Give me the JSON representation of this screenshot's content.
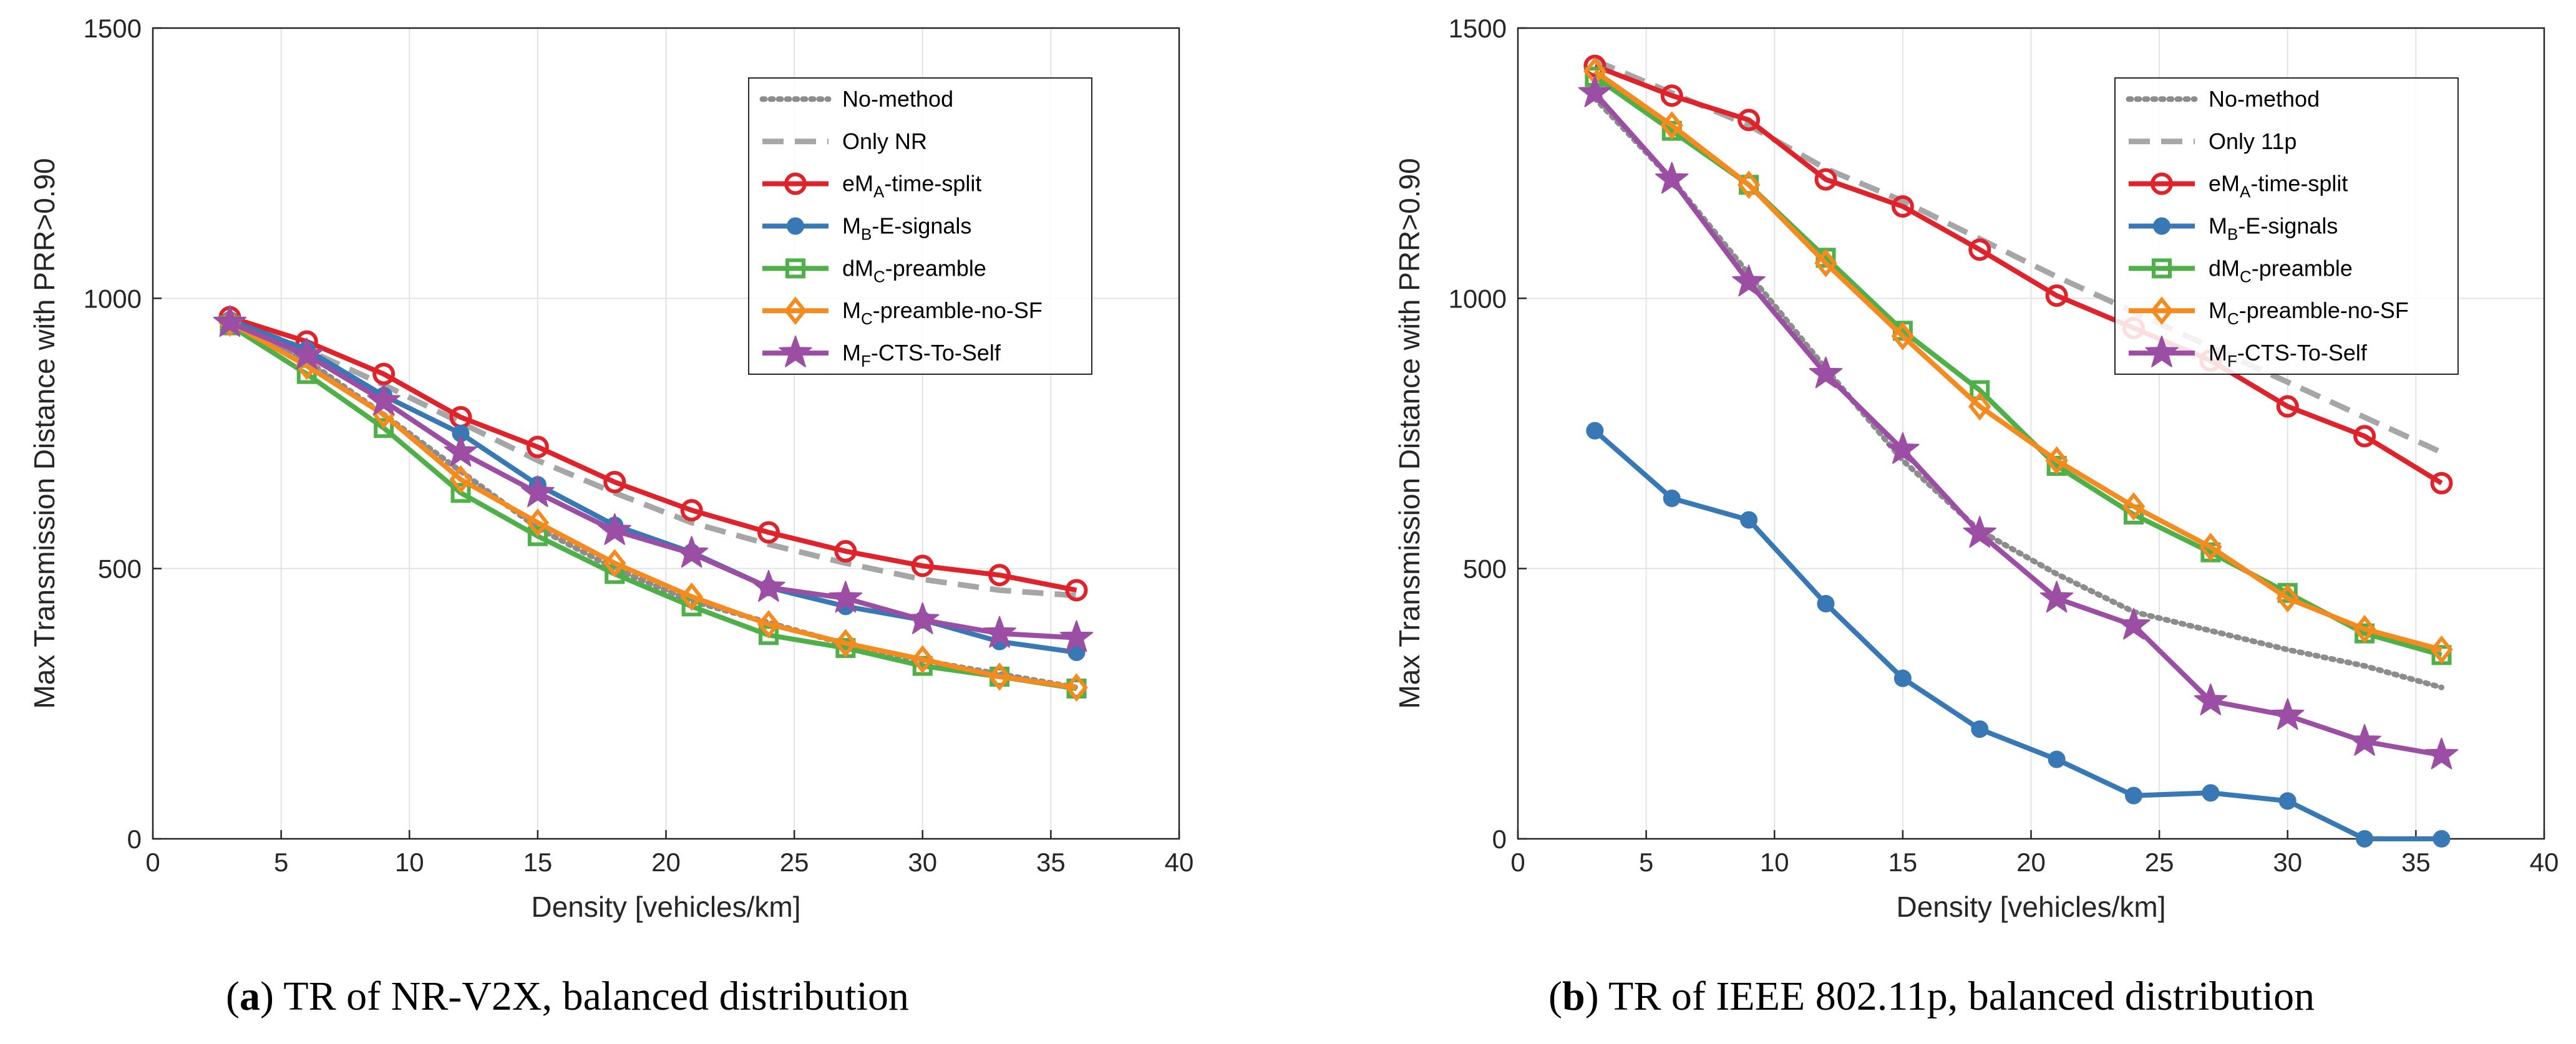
{
  "captions": [
    {
      "letter": "a",
      "text": "TR of NR-V2X, balanced distribution"
    },
    {
      "letter": "b",
      "text": "TR of IEEE 802.11p, balanced distribution"
    }
  ],
  "chart_data": [
    {
      "type": "line",
      "title": "",
      "xlabel": "Density [vehicles/km]",
      "ylabel": "Max Transmission Distance with PRR>0.90",
      "xlim": [
        0,
        40
      ],
      "ylim": [
        0,
        1500
      ],
      "xticks": [
        0,
        5,
        10,
        15,
        20,
        25,
        30,
        35,
        40
      ],
      "yticks": [
        0,
        500,
        1000,
        1500
      ],
      "grid": true,
      "legend_position": "top-right",
      "x": [
        3,
        6,
        9,
        12,
        15,
        18,
        21,
        24,
        27,
        30,
        33,
        36
      ],
      "series": [
        {
          "name": "No-method",
          "base": "No-method",
          "sub": "",
          "suffix": "",
          "style": "dotted",
          "color": "#8c8c8c",
          "marker": "none",
          "values": [
            955,
            885,
            785,
            680,
            575,
            500,
            440,
            400,
            360,
            330,
            305,
            280
          ]
        },
        {
          "name": "Only NR",
          "base": "Only NR",
          "sub": "",
          "suffix": "",
          "style": "dashed",
          "color": "#a6a6a6",
          "marker": "none",
          "values": [
            962,
            905,
            840,
            770,
            700,
            640,
            585,
            545,
            510,
            480,
            460,
            450
          ]
        },
        {
          "name": "eMA-time-split",
          "base": "eM",
          "sub": "A",
          "suffix": "-time-split",
          "style": "solid",
          "color": "#e0232b",
          "marker": "circle",
          "values": [
            965,
            920,
            860,
            780,
            725,
            660,
            608,
            567,
            532,
            505,
            488,
            460
          ]
        },
        {
          "name": "MB-E-signals",
          "base": "M",
          "sub": "B",
          "suffix": "-E-signals",
          "style": "solid",
          "color": "#3778b5",
          "marker": "dot",
          "values": [
            960,
            905,
            820,
            750,
            655,
            580,
            530,
            465,
            430,
            405,
            365,
            345
          ]
        },
        {
          "name": "dMC-preamble",
          "base": "dM",
          "sub": "C",
          "suffix": "-preamble",
          "style": "solid",
          "color": "#4fb04a",
          "marker": "square",
          "values": [
            950,
            860,
            760,
            640,
            560,
            490,
            430,
            377,
            353,
            320,
            300,
            278
          ]
        },
        {
          "name": "MC-preamble-no-SF",
          "base": "M",
          "sub": "C",
          "suffix": "-preamble-no-SF",
          "style": "solid",
          "color": "#f58a1f",
          "marker": "diamond",
          "values": [
            955,
            875,
            785,
            665,
            585,
            510,
            448,
            397,
            362,
            332,
            300,
            280
          ]
        },
        {
          "name": "MF-CTS-To-Self",
          "base": "M",
          "sub": "F",
          "suffix": "-CTS-To-Self",
          "style": "solid",
          "color": "#9b4ea3",
          "marker": "star",
          "values": [
            955,
            895,
            810,
            715,
            640,
            570,
            528,
            465,
            445,
            405,
            380,
            372
          ]
        }
      ]
    },
    {
      "type": "line",
      "title": "",
      "xlabel": "Density [vehicles/km]",
      "ylabel": "Max Transmission Distance with PRR>0.90",
      "xlim": [
        0,
        40
      ],
      "ylim": [
        0,
        1500
      ],
      "xticks": [
        0,
        5,
        10,
        15,
        20,
        25,
        30,
        35,
        40
      ],
      "yticks": [
        0,
        500,
        1000,
        1500
      ],
      "grid": true,
      "legend_position": "top-right",
      "x": [
        3,
        6,
        9,
        12,
        15,
        18,
        21,
        24,
        27,
        30,
        33,
        36
      ],
      "series": [
        {
          "name": "No-method",
          "base": "No-method",
          "sub": "",
          "suffix": "",
          "style": "dotted",
          "color": "#8c8c8c",
          "marker": "none",
          "values": [
            1370,
            1220,
            1045,
            870,
            700,
            570,
            490,
            420,
            385,
            350,
            320,
            280
          ]
        },
        {
          "name": "Only 11p",
          "base": "Only 11p",
          "sub": "",
          "suffix": "",
          "style": "dashed",
          "color": "#a6a6a6",
          "marker": "none",
          "values": [
            1440,
            1380,
            1320,
            1240,
            1180,
            1110,
            1040,
            975,
            910,
            845,
            780,
            715
          ]
        },
        {
          "name": "eMA-time-split",
          "base": "eM",
          "sub": "A",
          "suffix": "-time-split",
          "style": "solid",
          "color": "#e0232b",
          "marker": "circle",
          "values": [
            1430,
            1375,
            1330,
            1220,
            1170,
            1090,
            1005,
            945,
            885,
            800,
            745,
            658
          ]
        },
        {
          "name": "MB-E-signals",
          "base": "M",
          "sub": "B",
          "suffix": "-E-signals",
          "style": "solid",
          "color": "#3778b5",
          "marker": "dot",
          "values": [
            755,
            630,
            590,
            435,
            297,
            203,
            147,
            80,
            85,
            70,
            0,
            0
          ]
        },
        {
          "name": "dMC-preamble",
          "base": "dM",
          "sub": "C",
          "suffix": "-preamble",
          "style": "solid",
          "color": "#4fb04a",
          "marker": "square",
          "values": [
            1410,
            1310,
            1210,
            1075,
            940,
            830,
            690,
            600,
            530,
            455,
            380,
            340
          ]
        },
        {
          "name": "MC-preamble-no-SF",
          "base": "M",
          "sub": "C",
          "suffix": "-preamble-no-SF",
          "style": "solid",
          "color": "#f58a1f",
          "marker": "diamond",
          "values": [
            1420,
            1320,
            1210,
            1065,
            930,
            800,
            700,
            615,
            540,
            445,
            388,
            350
          ]
        },
        {
          "name": "MF-CTS-To-Self",
          "base": "M",
          "sub": "F",
          "suffix": "-CTS-To-Self",
          "style": "solid",
          "color": "#9b4ea3",
          "marker": "star",
          "values": [
            1380,
            1220,
            1030,
            860,
            720,
            565,
            445,
            395,
            255,
            228,
            180,
            155
          ]
        }
      ]
    }
  ]
}
